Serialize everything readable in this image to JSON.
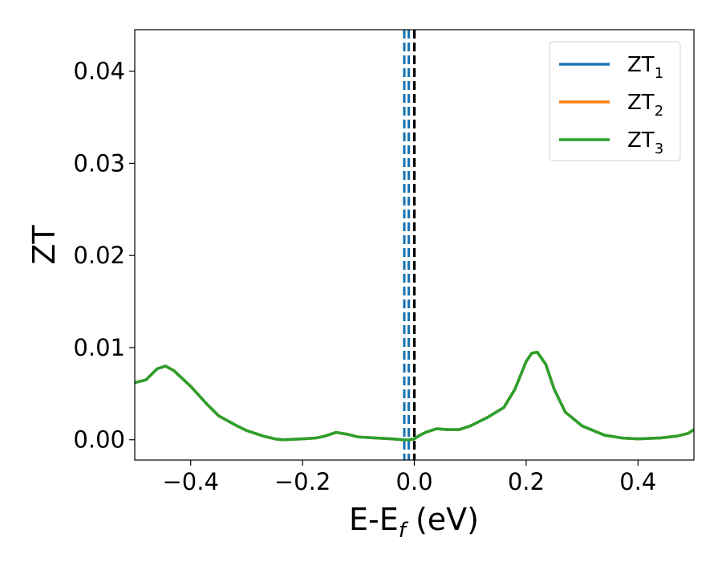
{
  "chart_data": {
    "type": "line",
    "xlabel": {
      "base": "E-E",
      "sub": "f",
      "suffix": " (eV)"
    },
    "ylabel": "ZT",
    "xlim": [
      -0.5,
      0.5
    ],
    "ylim": [
      -0.0022,
      0.0445
    ],
    "xticks": [
      -0.4,
      -0.2,
      0.0,
      0.2,
      0.4
    ],
    "xtick_labels": [
      "−0.4",
      "−0.2",
      "0.0",
      "0.2",
      "0.4"
    ],
    "yticks": [
      0.0,
      0.01,
      0.02,
      0.03,
      0.04
    ],
    "ytick_labels": [
      "0.00",
      "0.01",
      "0.02",
      "0.03",
      "0.04"
    ],
    "grid": false,
    "legend": {
      "placement": "top-right",
      "entries": [
        {
          "base": "ZT",
          "sub": "1",
          "color": "#1f77b4"
        },
        {
          "base": "ZT",
          "sub": "2",
          "color": "#ff7f0e"
        },
        {
          "base": "ZT",
          "sub": "3",
          "color": "#2ca02c"
        }
      ]
    },
    "vlines": [
      {
        "x": -0.018,
        "style": "dashed",
        "color": "#1f77b4"
      },
      {
        "x": -0.01,
        "style": "dashed",
        "color": "#1f77b4"
      },
      {
        "x": 0.0,
        "style": "dashed",
        "color": "#000000"
      }
    ],
    "x": [
      -0.5,
      -0.48,
      -0.46,
      -0.445,
      -0.43,
      -0.4,
      -0.37,
      -0.35,
      -0.32,
      -0.3,
      -0.27,
      -0.25,
      -0.235,
      -0.2,
      -0.175,
      -0.16,
      -0.14,
      -0.12,
      -0.1,
      -0.07,
      -0.04,
      -0.02,
      -0.01,
      0.0,
      0.01,
      0.02,
      0.04,
      0.06,
      0.08,
      0.1,
      0.13,
      0.16,
      0.18,
      0.2,
      0.21,
      0.22,
      0.235,
      0.25,
      0.27,
      0.3,
      0.34,
      0.37,
      0.4,
      0.44,
      0.47,
      0.49,
      0.5
    ],
    "series": [
      {
        "name": "ZT1",
        "color": "#1f77b4",
        "values": [
          0.0062,
          0.0065,
          0.0077,
          0.008,
          0.0075,
          0.0058,
          0.0038,
          0.0026,
          0.0016,
          0.001,
          0.0004,
          0.0001,
          0.0,
          0.0001,
          0.0002,
          0.0004,
          0.0008,
          0.0006,
          0.0003,
          0.0002,
          0.0001,
          0.0,
          0.0,
          0.0001,
          0.0005,
          0.0008,
          0.0012,
          0.0011,
          0.0011,
          0.0015,
          0.0024,
          0.0035,
          0.0055,
          0.0085,
          0.0094,
          0.0095,
          0.0082,
          0.0055,
          0.003,
          0.0015,
          0.0005,
          0.0002,
          0.0001,
          0.0002,
          0.0004,
          0.0007,
          0.0011
        ]
      },
      {
        "name": "ZT2",
        "color": "#ff7f0e",
        "values": [
          0.0062,
          0.0065,
          0.0077,
          0.008,
          0.0075,
          0.0058,
          0.0038,
          0.0026,
          0.0016,
          0.001,
          0.0004,
          0.0001,
          0.0,
          0.0001,
          0.0002,
          0.0004,
          0.0008,
          0.0006,
          0.0003,
          0.0002,
          0.0001,
          0.0,
          0.0,
          0.0001,
          0.0005,
          0.0008,
          0.0012,
          0.0011,
          0.0011,
          0.0015,
          0.0024,
          0.0035,
          0.0055,
          0.0085,
          0.0094,
          0.0095,
          0.0082,
          0.0055,
          0.003,
          0.0015,
          0.0005,
          0.0002,
          0.0001,
          0.0002,
          0.0004,
          0.0007,
          0.0011
        ]
      },
      {
        "name": "ZT3",
        "color": "#2ca02c",
        "values": [
          0.0062,
          0.0065,
          0.0077,
          0.008,
          0.0075,
          0.0058,
          0.0038,
          0.0026,
          0.0016,
          0.001,
          0.0004,
          0.0001,
          0.0,
          0.0001,
          0.0002,
          0.0004,
          0.0008,
          0.0006,
          0.0003,
          0.0002,
          0.0001,
          0.0,
          0.0,
          0.0001,
          0.0005,
          0.0008,
          0.0012,
          0.0011,
          0.0011,
          0.0015,
          0.0024,
          0.0035,
          0.0055,
          0.0085,
          0.0094,
          0.0095,
          0.0082,
          0.0055,
          0.003,
          0.0015,
          0.0005,
          0.0002,
          0.0001,
          0.0002,
          0.0004,
          0.0007,
          0.0011
        ]
      }
    ]
  }
}
